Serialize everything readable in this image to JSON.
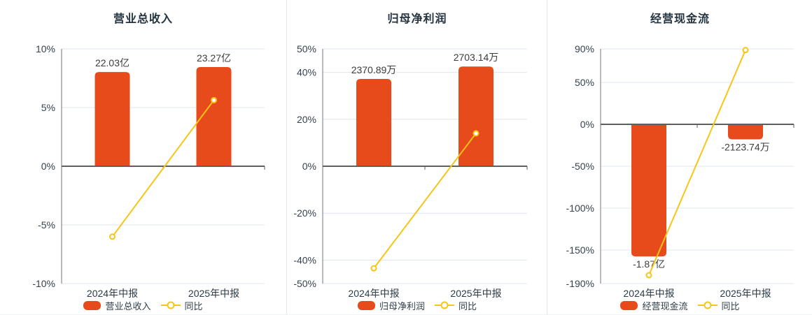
{
  "page": {
    "background": "#ffffff"
  },
  "colors": {
    "bar": "#e84b1b",
    "line": "#f7c516",
    "grid": "#dfe4f0",
    "zero_line": "#5f5f5f",
    "axis_line": "#70757c",
    "axis_label": "#37424d",
    "category_label": "#2b3a46",
    "value_label": "#3c3c3c",
    "title": "#233340",
    "divider": "#e5e5e5",
    "marker_fill": "#ffffff"
  },
  "chart_data": [
    {
      "type": "bar",
      "title": "营业总收入",
      "categories": [
        "2024年中报",
        "2025年中报"
      ],
      "bar_series": {
        "name": "营业总收入",
        "unit": "亿",
        "data": [
          {
            "label": "22.03亿",
            "value": 22.03,
            "plotted_pct": 8.03
          },
          {
            "label": "23.27亿",
            "value": 23.27,
            "plotted_pct": 8.45
          }
        ]
      },
      "line_series": {
        "name": "同比",
        "unit": "%",
        "values": [
          -6.0,
          5.63
        ]
      },
      "y_axis": {
        "ylim": [
          -10,
          10
        ],
        "ticks": [
          10,
          5,
          0,
          -5,
          -10
        ],
        "tick_labels": [
          "10%",
          "5%",
          "0%",
          "-5%",
          "-10%"
        ]
      },
      "grid": true,
      "legend_position": "bottom"
    },
    {
      "type": "bar",
      "title": "归母净利润",
      "categories": [
        "2024年中报",
        "2025年中报"
      ],
      "bar_series": {
        "name": "归母净利润",
        "unit": "万",
        "data": [
          {
            "label": "2370.89万",
            "value": 2370.89,
            "plotted_pct": 37.2
          },
          {
            "label": "2703.14万",
            "value": 2703.14,
            "plotted_pct": 42.5
          }
        ]
      },
      "line_series": {
        "name": "同比",
        "unit": "%",
        "values": [
          -43.5,
          14.01
        ]
      },
      "y_axis": {
        "ylim": [
          -50,
          50
        ],
        "ticks": [
          50,
          40,
          20,
          0,
          -20,
          -40,
          -50
        ],
        "tick_labels": [
          "50%",
          "40%",
          "20%",
          "0%",
          "-20%",
          "-40%",
          "-50%"
        ]
      },
      "grid": true,
      "legend_position": "bottom"
    },
    {
      "type": "bar",
      "title": "经营现金流",
      "categories": [
        "2024年中报",
        "2025年中报"
      ],
      "bar_series": {
        "name": "经营现金流",
        "unit": "万",
        "data": [
          {
            "label": "-1.87亿",
            "value": -18700,
            "plotted_pct": -157.6
          },
          {
            "label": "-2123.74万",
            "value": -2123.74,
            "plotted_pct": -17.9
          }
        ]
      },
      "line_series": {
        "name": "同比",
        "unit": "%",
        "values": [
          -180,
          88.64
        ]
      },
      "y_axis": {
        "ylim": [
          -190,
          90
        ],
        "ticks": [
          90,
          50,
          0,
          -50,
          -100,
          -150,
          -190
        ],
        "tick_labels": [
          "90%",
          "50%",
          "0%",
          "-50%",
          "-100%",
          "-150%",
          "-190%"
        ]
      },
      "grid": true,
      "legend_position": "bottom"
    }
  ]
}
